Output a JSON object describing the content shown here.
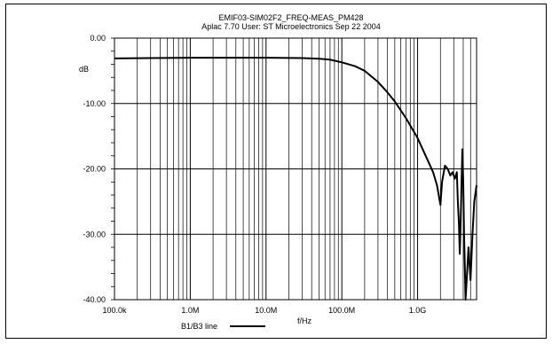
{
  "chart_data": {
    "type": "line",
    "title": "EMIF03-SIM02F2_FREQ-MEAS_PM428",
    "subtitle": "Aplac 7.70 User: ST Microelectronics  Sep 22 2004",
    "ylabel": "dB",
    "xlabel": "f/Hz",
    "x_scale": "log",
    "xlim": [
      100000,
      6000000000
    ],
    "ylim": [
      -40,
      0
    ],
    "x_ticks": [
      {
        "value": 100000,
        "label": "100.0k"
      },
      {
        "value": 1000000,
        "label": "1.0M"
      },
      {
        "value": 10000000,
        "label": "10.0M"
      },
      {
        "value": 100000000,
        "label": "100.0M"
      },
      {
        "value": 1000000000,
        "label": "1.0G"
      }
    ],
    "y_ticks": [
      {
        "value": 0,
        "label": "0.00"
      },
      {
        "value": -10,
        "label": "-10.00"
      },
      {
        "value": -20,
        "label": "-20.00"
      },
      {
        "value": -30,
        "label": "-30.00"
      },
      {
        "value": -40,
        "label": "-40.00"
      }
    ],
    "grid": true,
    "legend": {
      "position": "bottom-center",
      "entries": [
        {
          "name": "B1/B3 line",
          "color": "#000000"
        }
      ]
    },
    "series": [
      {
        "name": "B1/B3 line",
        "color": "#000000",
        "x": [
          100000,
          300000,
          1000000,
          3000000,
          10000000,
          30000000,
          50000000,
          70000000,
          100000000,
          150000000,
          200000000,
          300000000,
          400000000,
          500000000,
          700000000,
          1000000000,
          1300000000,
          1600000000,
          1800000000,
          2000000000,
          2100000000,
          2300000000,
          2500000000,
          2700000000,
          2900000000,
          3100000000,
          3300000000,
          3400000000,
          3500000000,
          3600000000,
          3700000000,
          3800000000,
          3900000000,
          4000000000,
          4100000000,
          4200000000,
          4300000000,
          4500000000,
          4700000000,
          5000000000,
          5300000000,
          5600000000,
          6000000000
        ],
        "y": [
          -3.1,
          -3.05,
          -3.0,
          -3.0,
          -3.0,
          -3.05,
          -3.15,
          -3.3,
          -3.7,
          -4.3,
          -5.0,
          -6.7,
          -8.3,
          -9.7,
          -12.2,
          -15.3,
          -18.2,
          -20.5,
          -22.5,
          -25.5,
          -22.0,
          -19.5,
          -20.0,
          -21.0,
          -20.5,
          -21.5,
          -20.5,
          -25.0,
          -28.0,
          -33.0,
          -28.0,
          -22.0,
          -17.0,
          -22.0,
          -30.0,
          -35.0,
          -40.0,
          -36.0,
          -32.0,
          -37.0,
          -30.0,
          -25.0,
          -22.5
        ]
      }
    ]
  }
}
